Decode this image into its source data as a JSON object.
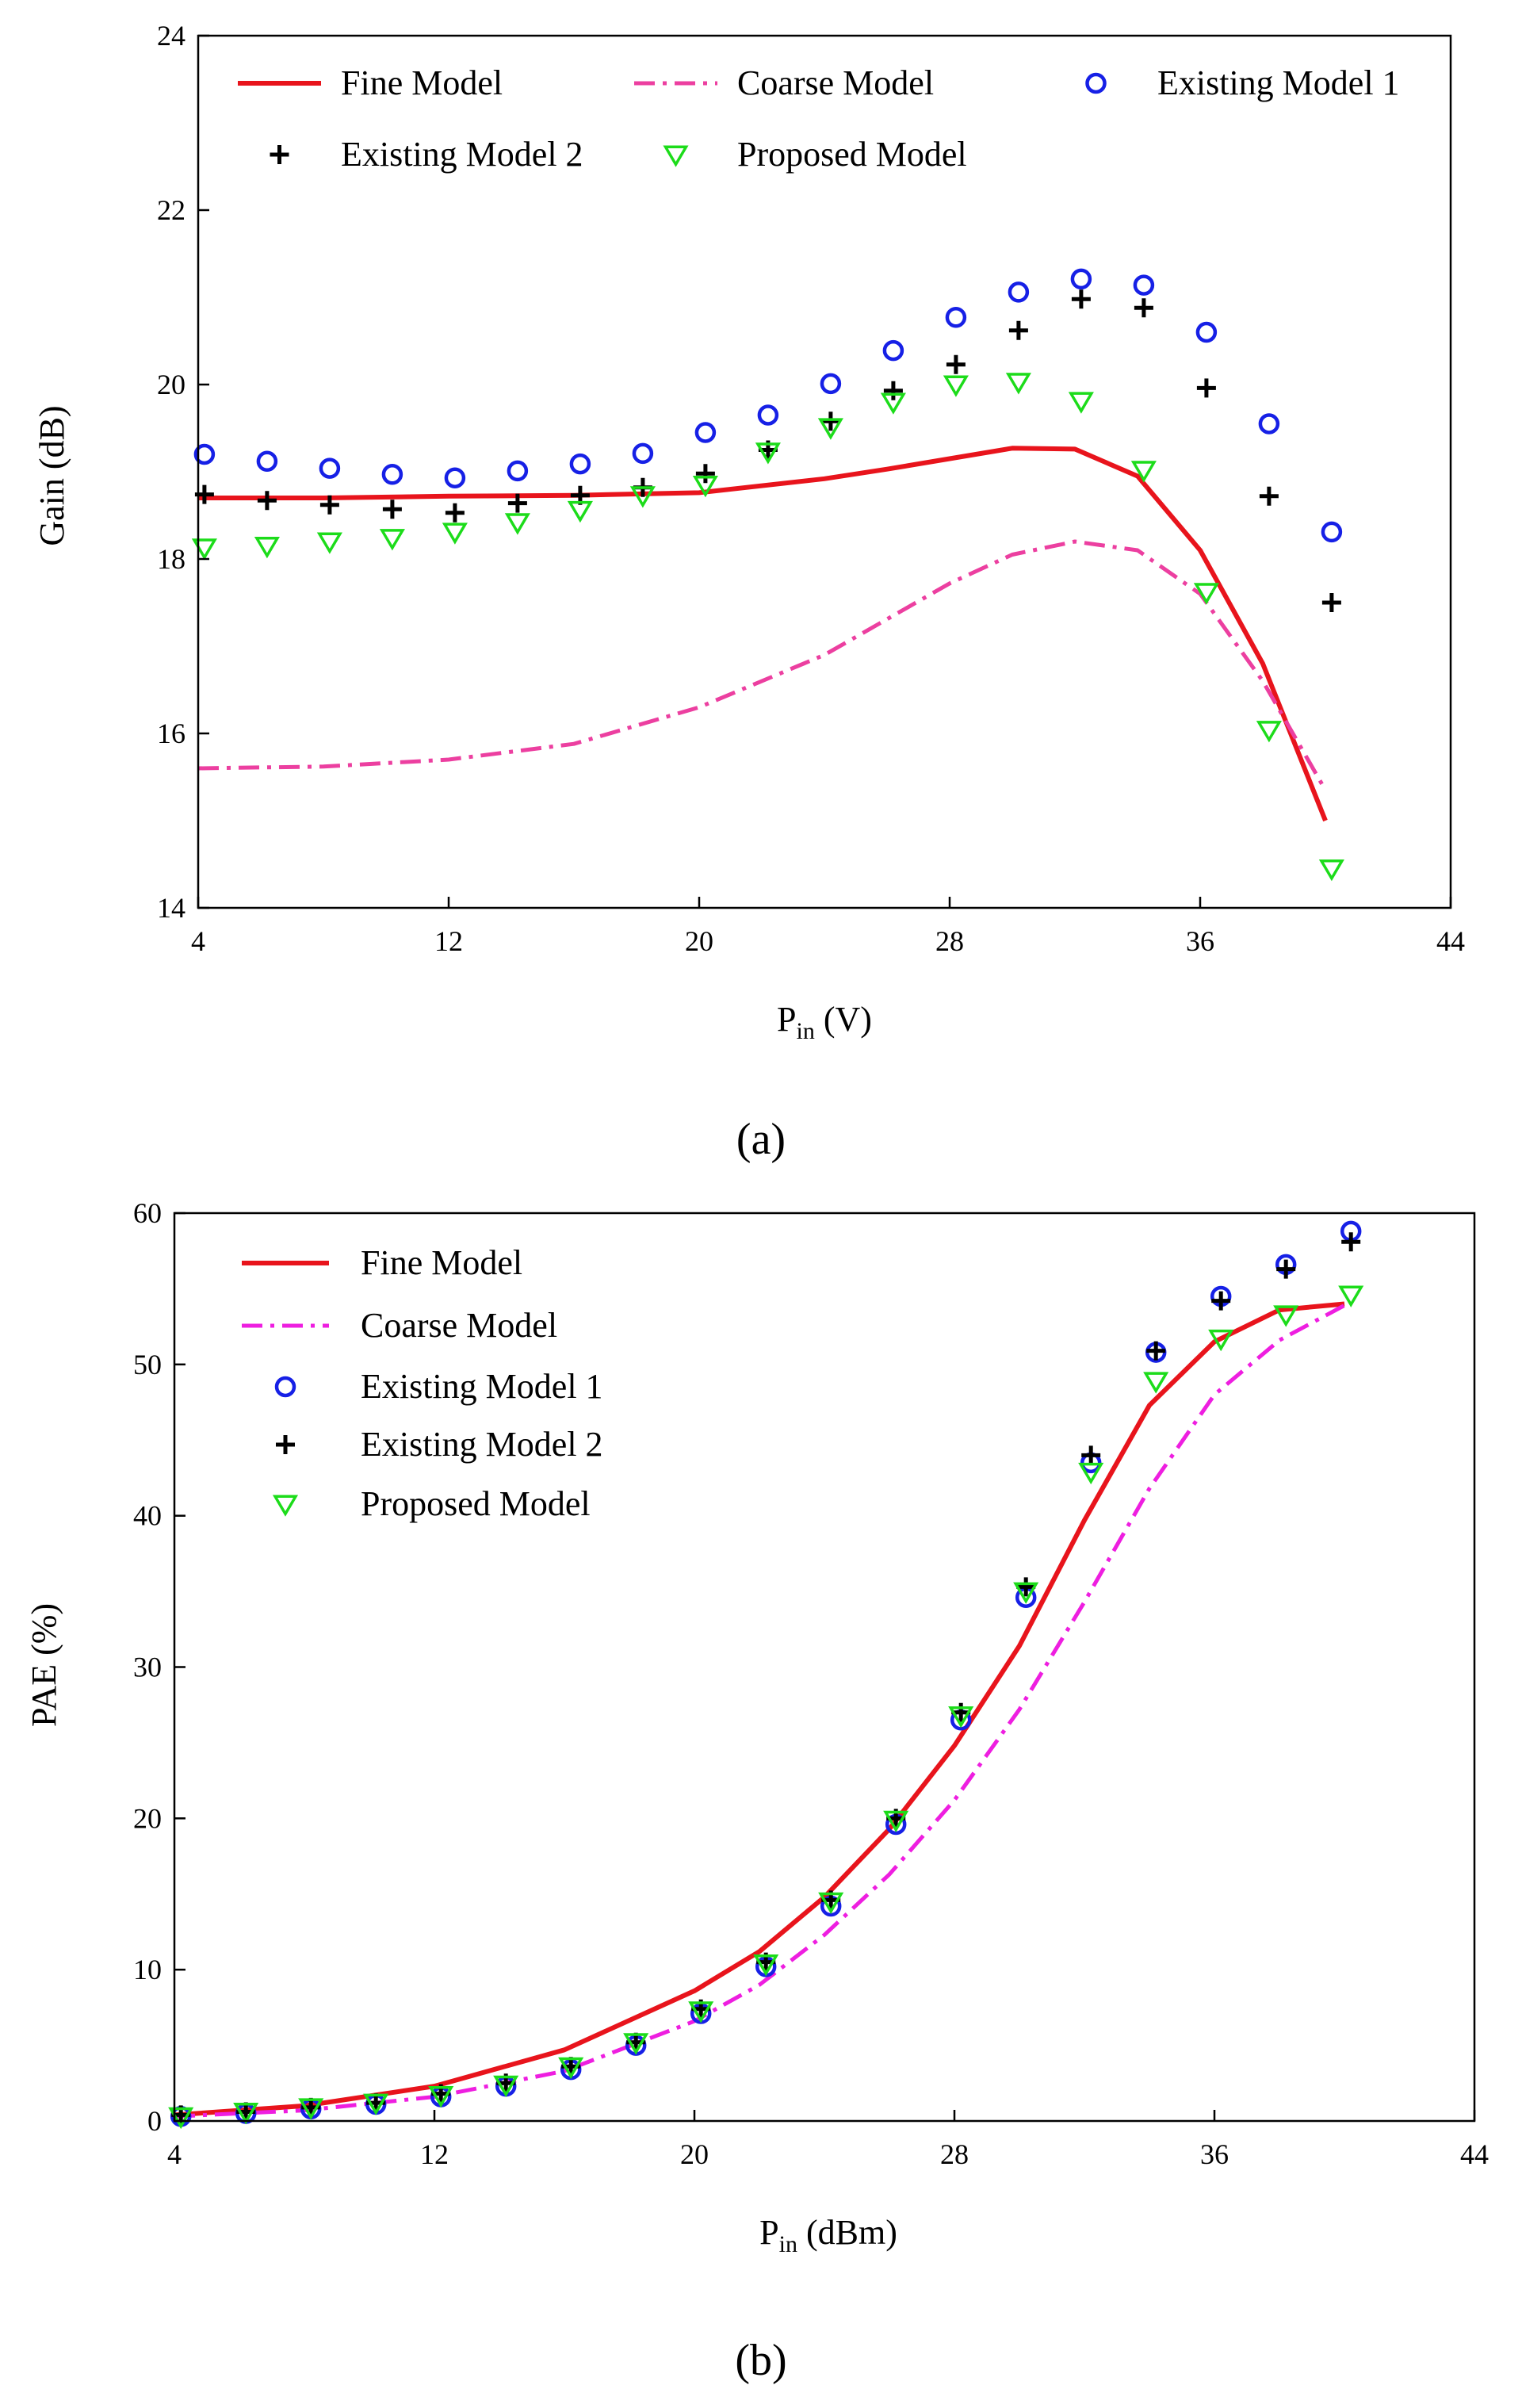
{
  "chart_data": [
    {
      "panel_label": "(a)",
      "type": "line",
      "xlabel_main": "P",
      "xlabel_sub": "in",
      "xlabel_unit": " (V)",
      "ylabel": "Gain (dB)",
      "xlim": [
        4,
        44
      ],
      "ylim": [
        14,
        24
      ],
      "xticks": [
        4,
        12,
        20,
        28,
        36,
        44
      ],
      "yticks": [
        14,
        16,
        18,
        20,
        22,
        24
      ],
      "legend": [
        {
          "label": "Fine Model",
          "series": "fine"
        },
        {
          "label": "Coarse Model",
          "series": "coarse"
        },
        {
          "label": "Existing Model 1",
          "series": "em1"
        },
        {
          "label": "Existing Model 2",
          "series": "em2"
        },
        {
          "label": "Proposed Model",
          "series": "proposed"
        }
      ],
      "series": [
        {
          "name": "Fine Model",
          "key": "fine",
          "style": "line",
          "color": "#e8141c",
          "x": [
            4,
            8,
            12,
            16,
            20,
            24,
            26,
            28,
            30,
            32,
            34,
            36,
            38,
            40
          ],
          "y": [
            18.7,
            18.7,
            18.72,
            18.73,
            18.76,
            18.92,
            19.03,
            19.15,
            19.27,
            19.26,
            18.95,
            18.1,
            16.8,
            15.0
          ]
        },
        {
          "name": "Coarse Model",
          "key": "coarse",
          "style": "dashdot",
          "color": "#ec3fa0",
          "x": [
            4,
            8,
            12,
            16,
            20,
            24,
            28,
            30,
            32,
            34,
            36,
            38,
            40
          ],
          "y": [
            15.6,
            15.62,
            15.7,
            15.88,
            16.3,
            16.9,
            17.72,
            18.05,
            18.2,
            18.1,
            17.6,
            16.6,
            15.35
          ]
        },
        {
          "name": "Existing Model 1",
          "key": "em1",
          "style": "circle",
          "color": "#1620e6",
          "x": [
            4.2,
            6.2,
            8.2,
            10.2,
            12.2,
            14.2,
            16.2,
            18.2,
            20.2,
            22.2,
            24.2,
            26.2,
            28.2,
            30.2,
            32.2,
            34.2,
            36.2,
            38.2,
            40.2
          ],
          "y": [
            19.2,
            19.12,
            19.04,
            18.97,
            18.93,
            19.01,
            19.09,
            19.21,
            19.45,
            19.65,
            20.01,
            20.39,
            20.77,
            21.06,
            21.21,
            21.14,
            20.6,
            19.55,
            18.31
          ]
        },
        {
          "name": "Existing Model 2",
          "key": "em2",
          "style": "plus",
          "color": "#000000",
          "x": [
            4.2,
            6.2,
            8.2,
            10.2,
            12.2,
            14.2,
            16.2,
            18.2,
            20.2,
            22.2,
            24.2,
            26.2,
            28.2,
            30.2,
            32.2,
            34.2,
            36.2,
            38.2,
            40.2
          ],
          "y": [
            18.74,
            18.67,
            18.62,
            18.57,
            18.53,
            18.64,
            18.73,
            18.82,
            18.98,
            19.25,
            19.58,
            19.93,
            20.23,
            20.62,
            20.98,
            20.88,
            19.96,
            18.72,
            17.5
          ]
        },
        {
          "name": "Proposed Model",
          "key": "proposed",
          "style": "triangle",
          "color": "#1cdc1a",
          "x": [
            4.2,
            6.2,
            8.2,
            10.2,
            12.2,
            14.2,
            16.2,
            18.2,
            20.2,
            22.2,
            24.2,
            26.2,
            28.2,
            30.2,
            32.2,
            34.2,
            36.2,
            38.2,
            40.2
          ],
          "y": [
            18.13,
            18.15,
            18.2,
            18.24,
            18.31,
            18.42,
            18.56,
            18.73,
            18.85,
            19.23,
            19.51,
            19.8,
            20.0,
            20.03,
            19.81,
            19.02,
            17.62,
            16.04,
            14.45
          ]
        }
      ]
    },
    {
      "panel_label": "(b)",
      "type": "line",
      "xlabel_main": "P",
      "xlabel_sub": "in",
      "xlabel_unit": " (dBm)",
      "ylabel": "PAE (%)",
      "xlim": [
        4,
        44
      ],
      "ylim": [
        0,
        60
      ],
      "xticks": [
        4,
        12,
        20,
        28,
        36,
        44
      ],
      "yticks": [
        0,
        10,
        20,
        30,
        40,
        50,
        60
      ],
      "legend": [
        {
          "label": "Fine Model",
          "series": "fine"
        },
        {
          "label": "Coarse Model",
          "series": "coarse"
        },
        {
          "label": "Existing Model 1",
          "series": "em1"
        },
        {
          "label": "Existing Model 2",
          "series": "em2"
        },
        {
          "label": "Proposed Model",
          "series": "proposed"
        }
      ],
      "series": [
        {
          "name": "Fine Model",
          "key": "fine",
          "style": "line",
          "color": "#e8141c",
          "x": [
            4,
            8,
            12,
            16,
            20,
            22,
            24,
            26,
            28,
            30,
            32,
            34,
            36,
            38,
            40
          ],
          "y": [
            0.4,
            1.0,
            2.3,
            4.7,
            8.6,
            11.2,
            14.8,
            19.3,
            24.8,
            31.4,
            39.7,
            47.3,
            51.5,
            53.6,
            54.0
          ]
        },
        {
          "name": "Coarse Model",
          "key": "coarse",
          "style": "dashdot",
          "color": "#ee1ee0",
          "x": [
            4,
            8,
            12,
            16,
            20,
            22,
            24,
            26,
            28,
            30,
            32,
            34,
            36,
            38,
            40
          ],
          "y": [
            0.3,
            0.7,
            1.6,
            3.3,
            6.6,
            9.0,
            12.3,
            16.3,
            21.2,
            27.2,
            34.3,
            41.8,
            48.0,
            51.6,
            53.9
          ]
        },
        {
          "name": "Existing Model 1",
          "key": "em1",
          "style": "circle",
          "color": "#1620e6",
          "x": [
            4.2,
            6.2,
            8.2,
            10.2,
            12.2,
            14.2,
            16.2,
            18.2,
            20.2,
            22.2,
            24.2,
            26.2,
            28.2,
            30.2,
            32.2,
            34.2,
            36.2,
            38.2,
            40.2
          ],
          "y": [
            0.3,
            0.5,
            0.8,
            1.1,
            1.6,
            2.3,
            3.4,
            5.0,
            7.1,
            10.2,
            14.2,
            19.6,
            26.5,
            34.6,
            43.5,
            50.8,
            54.5,
            56.6,
            58.8
          ]
        },
        {
          "name": "Existing Model 2",
          "key": "em2",
          "style": "plus",
          "color": "#000000",
          "x": [
            4.2,
            6.2,
            8.2,
            10.2,
            12.2,
            14.2,
            16.2,
            18.2,
            20.2,
            22.2,
            24.2,
            26.2,
            28.2,
            30.2,
            32.2,
            34.2,
            36.2,
            38.2,
            40.2
          ],
          "y": [
            0.4,
            0.6,
            0.9,
            1.2,
            1.8,
            2.5,
            3.6,
            5.2,
            7.4,
            10.5,
            14.6,
            20.0,
            27.0,
            35.3,
            44.0,
            50.9,
            54.2,
            56.3,
            58.1
          ]
        },
        {
          "name": "Proposed Model",
          "key": "proposed",
          "style": "triangle",
          "color": "#1cdc1a",
          "x": [
            4.2,
            6.2,
            8.2,
            10.2,
            12.2,
            14.2,
            16.2,
            18.2,
            20.2,
            22.2,
            24.2,
            26.2,
            28.2,
            30.2,
            32.2,
            34.2,
            36.2,
            38.2,
            40.2
          ],
          "y": [
            0.3,
            0.6,
            0.9,
            1.2,
            1.7,
            2.4,
            3.6,
            5.2,
            7.3,
            10.4,
            14.5,
            19.9,
            26.8,
            35.0,
            42.9,
            48.9,
            51.7,
            53.3,
            54.6
          ]
        }
      ]
    }
  ]
}
